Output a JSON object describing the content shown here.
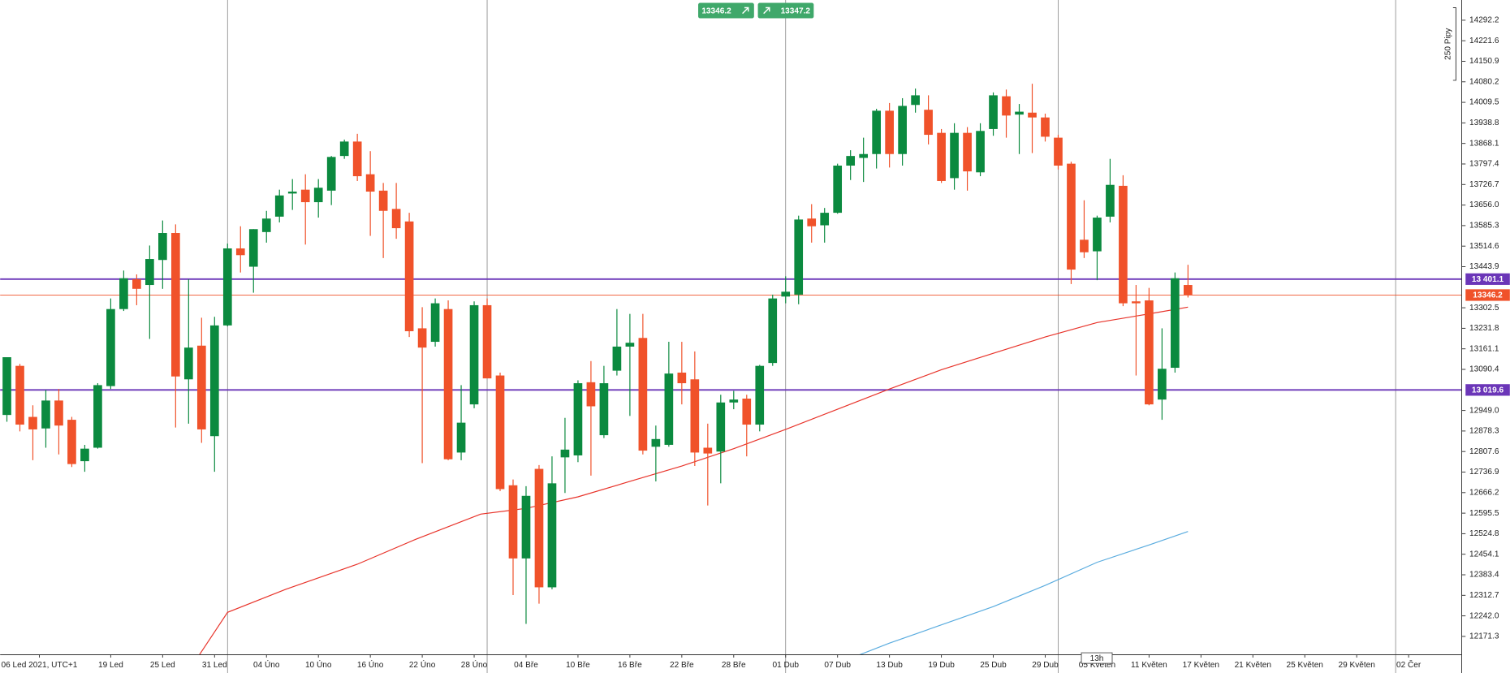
{
  "chart_data": {
    "type": "candlestick",
    "ylim": [
      12108.3,
      14361.8
    ],
    "xlim": [
      -0.52,
      112.09
    ],
    "yticks": [
      14292.2,
      14221.6,
      14150.9,
      14080.2,
      14009.5,
      13938.8,
      13868.1,
      13797.4,
      13726.7,
      {
        "value": 13656.0,
        "label": "13656.0"
      },
      13585.3,
      13514.6,
      13443.9,
      13302.5,
      13231.8,
      13161.1,
      13090.4,
      {
        "value": 12949.0,
        "label": "12949.0"
      },
      12878.3,
      12807.6,
      12736.9,
      12666.2,
      12595.5,
      12524.8,
      12454.1,
      12383.4,
      12312.7,
      {
        "value": 12242.0,
        "label": "12242.0"
      },
      12171.3
    ],
    "xticks": [
      {
        "value": 2.5,
        "label": "06 Led 2021, UTC+1"
      },
      {
        "value": 8,
        "label": "19 Led"
      },
      {
        "value": 12,
        "label": "25 Led"
      },
      {
        "value": 16,
        "label": "31 Led"
      },
      {
        "value": 20,
        "label": "04 Úno"
      },
      {
        "value": 24,
        "label": "10 Úno"
      },
      {
        "value": 28,
        "label": "16 Úno"
      },
      {
        "value": 32,
        "label": "22 Úno"
      },
      {
        "value": 36,
        "label": "28 Úno"
      },
      {
        "value": 40,
        "label": "04 Bře"
      },
      {
        "value": 44,
        "label": "10 Bře"
      },
      {
        "value": 48,
        "label": "16 Bře"
      },
      {
        "value": 52,
        "label": "22 Bře"
      },
      {
        "value": 56,
        "label": "28 Bře"
      },
      {
        "value": 60,
        "label": "01 Dub"
      },
      {
        "value": 64,
        "label": "07 Dub"
      },
      {
        "value": 68,
        "label": "13 Dub"
      },
      {
        "value": 72,
        "label": "19 Dub"
      },
      {
        "value": 76,
        "label": "25 Dub"
      },
      {
        "value": 80,
        "label": "29 Dub"
      },
      {
        "value": 84,
        "label": "05 Květen"
      },
      {
        "value": 88,
        "label": "11 Květen"
      },
      {
        "value": 92,
        "label": "17 Květen"
      },
      {
        "value": 96,
        "label": "21 Květen"
      },
      {
        "value": 100,
        "label": "25 Květen"
      },
      {
        "value": 104,
        "label": "29 Květen"
      },
      {
        "value": 108,
        "label": "02 Čer"
      }
    ],
    "month_separators": [
      17,
      37,
      60,
      81,
      107
    ],
    "up_color": "#0b8a3f",
    "down_color": "#f0522a",
    "open": [
      12933.5,
      13102.5,
      12926.8,
      12887.1,
      12983.2,
      12916.9,
      12774.4,
      12820.8,
      13032.9,
      13298.0,
      13400.7,
      13380.9,
      13467.0,
      13559.8,
      13056.1,
      13172.1,
      12860.6,
      13241.7,
      13506.8,
      13443.8,
      13563.1,
      13616.1,
      13695.7,
      13708.9,
      13665.9,
      13705.6,
      13824.9,
      13874.6,
      13762.0,
      13705.6,
      13642.7,
      13599.6,
      13231.7,
      13185.3,
      13298.0,
      12804.2,
      12969.9,
      13311.3,
      13069.3,
      12691.5,
      12439.7,
      12747.9,
      12340.3,
      12787.6,
      12794.3,
      13046.1,
      12863.9,
      13085.9,
      13168.8,
      13198.6,
      12824.1,
      12830.7,
      13079.3,
      13056.1,
      12820.8,
      12807.5,
      12976.5,
      12989.8,
      12900.3,
      13112.4,
      13341.1,
      13347.7,
      13609.5,
      13586.3,
      13629.4,
      13791.8,
      13818.3,
      13831.6,
      13980.7,
      13831.6,
      14000.6,
      13984.0,
      13904.5,
      13748.7,
      13904.5,
      13768.6,
      13917.7,
      14030.4,
      13967.4,
      13974.1,
      13957.5,
      13887.9,
      13798.4,
      13536.6,
      13496.8,
      13616.1,
      13722.2,
      13324.5,
      13327.8,
      12986.5,
      13095.9,
      13380.9
    ],
    "high": [
      13132.3,
      13109.1,
      12966.6,
      13019.6,
      13022.9,
      12926.8,
      12830.7,
      13042.8,
      13334.5,
      13430.6,
      13417.3,
      13516.7,
      13602.9,
      13589.6,
      13400.7,
      13268.2,
      13271.5,
      13523.4,
      13583.0,
      13573.1,
      13636.0,
      13708.9,
      13745.4,
      13762.0,
      13745.4,
      13824.9,
      13881.3,
      13901.2,
      13841.5,
      13732.1,
      13732.1,
      13629.4,
      13304.6,
      13334.5,
      13327.8,
      13036.2,
      13324.5,
      13334.5,
      13079.3,
      12711.4,
      12688.2,
      12761.1,
      12791.0,
      12923.5,
      13052.8,
      13119.0,
      13102.5,
      13298.0,
      13281.4,
      13281.4,
      12897.0,
      13185.3,
      13185.3,
      13152.2,
      12903.6,
      13003.1,
      13016.3,
      13003.1,
      13105.8,
      13347.7,
      13410.7,
      13619.5,
      13659.2,
      13646.0,
      13798.4,
      13844.8,
      13887.9,
      13987.3,
      14007.2,
      14023.8,
      14056.9,
      14033.7,
      13917.7,
      13937.6,
      13924.4,
      13937.6,
      14043.7,
      14053.6,
      14003.9,
      14073.5,
      13970.7,
      13897.8,
      13805.0,
      13672.5,
      13619.5,
      13815.0,
      13758.7,
      13380.9,
      13370.9,
      13231.7,
      13423.9,
      13450.4
    ],
    "low": [
      12910.3,
      12877.1,
      12777.7,
      12820.8,
      12797.6,
      12754.5,
      12737.9,
      12817.5,
      13022.9,
      13291.4,
      13311.3,
      13195.3,
      13367.6,
      12890.4,
      12903.6,
      12837.4,
      12737.9,
      13238.4,
      13423.9,
      13354.3,
      13526.7,
      13596.3,
      13639.3,
      13520.0,
      13612.8,
      13655.9,
      13815.0,
      13738.8,
      13549.9,
      13473.6,
      13539.9,
      13201.9,
      12767.8,
      13168.8,
      12777.7,
      12777.7,
      12956.7,
      13059.4,
      12671.7,
      12313.7,
      12214.3,
      12283.9,
      12333.6,
      12665.0,
      12771.1,
      12724.7,
      12853.9,
      13069.3,
      12930.2,
      12797.6,
      12704.8,
      12824.1,
      12969.9,
      12757.8,
      12621.9,
      12698.2,
      12953.3,
      12791.0,
      12877.1,
      13102.5,
      13317.9,
      13314.6,
      13526.7,
      13526.7,
      13626.1,
      13742.1,
      13735.5,
      13781.8,
      13785.2,
      13791.8,
      13974.1,
      13864.7,
      13732.1,
      13708.9,
      13705.6,
      13755.3,
      13894.5,
      13887.9,
      13831.6,
      13834.9,
      13874.6,
      13778.5,
      13384.2,
      13473.6,
      13397.4,
      13596.3,
      13307.9,
      13069.3,
      12966.6,
      12916.9,
      13079.3,
      13337.8
    ],
    "close": [
      13132.3,
      12900.3,
      12883.8,
      12983.2,
      12897.0,
      12764.5,
      12817.5,
      13036.2,
      13298.0,
      13404.1,
      13367.6,
      13470.3,
      13559.8,
      13066.0,
      13165.4,
      12883.8,
      13241.7,
      13506.8,
      13483.6,
      13573.1,
      13609.5,
      13689.1,
      13702.3,
      13665.9,
      13715.6,
      13821.6,
      13874.6,
      13755.3,
      13702.3,
      13636.0,
      13576.4,
      13221.8,
      13165.4,
      13317.9,
      12781.0,
      12907.0,
      13311.3,
      13059.4,
      12678.3,
      12439.7,
      12655.1,
      12340.3,
      12698.2,
      12814.2,
      13042.8,
      12963.3,
      13042.8,
      13168.8,
      13182.0,
      12810.8,
      12850.6,
      13076.0,
      13042.8,
      12804.2,
      12800.9,
      12976.5,
      12986.5,
      12900.3,
      13102.5,
      13334.5,
      13357.7,
      13606.2,
      13583.0,
      13629.4,
      13791.8,
      13824.9,
      13831.6,
      13980.7,
      13831.6,
      13997.3,
      14033.7,
      13897.8,
      13738.8,
      13904.5,
      13771.9,
      13911.1,
      14033.7,
      13964.1,
      13977.4,
      13957.5,
      13891.2,
      13791.8,
      13433.9,
      13493.5,
      13612.8,
      13725.5,
      13317.9,
      13317.9,
      12969.9,
      13092.5,
      13404.1,
      13346.2
    ],
    "ma": [
      {
        "color": "#e8332a",
        "x": [
          14,
          17,
          21.5,
          27,
          31.5,
          36.5,
          40,
          44,
          48,
          52,
          56,
          60,
          64,
          68,
          72,
          76,
          80,
          84,
          88,
          91
        ],
        "values": [
          12052.0,
          12254.1,
          12333.6,
          12419.8,
          12505.6,
          12592.1,
          12612.0,
          12651.7,
          12704.8,
          12757.8,
          12817.5,
          12883.8,
          12953.3,
          13022.9,
          13089.2,
          13145.6,
          13201.9,
          13251.6,
          13281.4,
          13304.6
        ]
      },
      {
        "color": "#5aacdf",
        "x": [
          62,
          64,
          68,
          72,
          76,
          80,
          84,
          88,
          91
        ],
        "values": [
          12045.3,
          12078.5,
          12148.1,
          12211.0,
          12274.0,
          12346.9,
          12426.4,
          12486.1,
          12532.5
        ]
      }
    ],
    "levels": [
      {
        "value": 13401.1,
        "label": "13 401.1",
        "color": "#6b36b8"
      },
      {
        "value": 13346.2,
        "label": "13346.2",
        "color": "#f0522a"
      },
      {
        "value": 13019.6,
        "label": "13 019.6",
        "color": "#6b36b8"
      }
    ],
    "bid": 13346.2,
    "ask": 13347.2,
    "pip_scale": {
      "value": 250,
      "label": "250 Pipy"
    },
    "timeframe": "13h"
  }
}
